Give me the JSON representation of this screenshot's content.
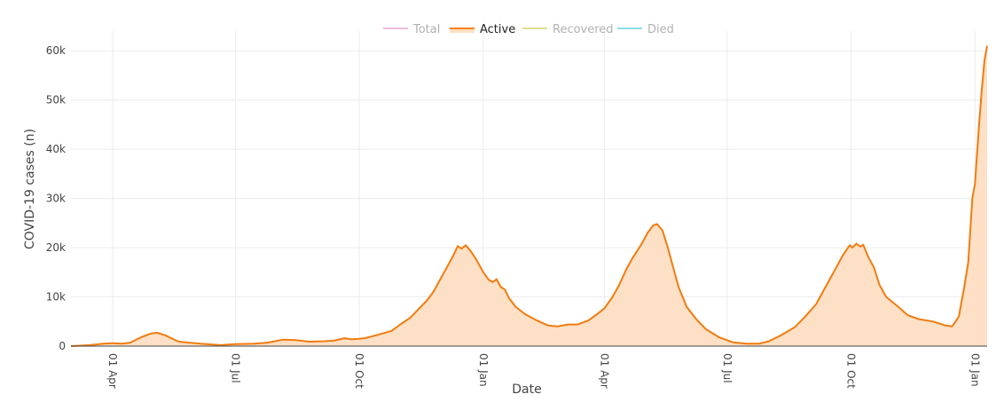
{
  "chart_data": {
    "type": "area",
    "xlabel": "Date",
    "ylabel": "COVID-19 cases (n)",
    "ylim": [
      0,
      64000
    ],
    "xlim": [
      "2020-03-01",
      "2022-01-10"
    ],
    "grid": true,
    "legend_position": "top-center",
    "y_ticks": [
      {
        "value": 0,
        "label": "0"
      },
      {
        "value": 10000,
        "label": "10k"
      },
      {
        "value": 20000,
        "label": "20k"
      },
      {
        "value": 30000,
        "label": "30k"
      },
      {
        "value": 40000,
        "label": "40k"
      },
      {
        "value": 50000,
        "label": "50k"
      },
      {
        "value": 60000,
        "label": "60k"
      }
    ],
    "x_ticks": [
      {
        "date": "2020-04-01",
        "label": "01 Apr"
      },
      {
        "date": "2020-07-01",
        "label": "01 Jul"
      },
      {
        "date": "2020-10-01",
        "label": "01 Oct"
      },
      {
        "date": "2021-01-01",
        "label": "01 Jan"
      },
      {
        "date": "2021-04-01",
        "label": "01 Apr"
      },
      {
        "date": "2021-07-01",
        "label": "01 Jul"
      },
      {
        "date": "2021-10-01",
        "label": "01 Oct"
      },
      {
        "date": "2022-01-01",
        "label": "01 Jan"
      }
    ],
    "legend": [
      {
        "name": "Total",
        "color": "#e377c2",
        "active": false
      },
      {
        "name": "Active",
        "color": "#ff7f0e",
        "active": true
      },
      {
        "name": "Recovered",
        "color": "#bcbd22",
        "active": false
      },
      {
        "name": "Died",
        "color": "#17becf",
        "active": false
      }
    ],
    "series": [
      {
        "name": "Active",
        "color": "#f07c10",
        "fill": "#fde0c5",
        "points": [
          [
            "2020-03-01",
            0
          ],
          [
            "2020-03-15",
            200
          ],
          [
            "2020-03-25",
            500
          ],
          [
            "2020-04-01",
            600
          ],
          [
            "2020-04-08",
            500
          ],
          [
            "2020-04-14",
            700
          ],
          [
            "2020-04-22",
            1800
          ],
          [
            "2020-04-30",
            2600
          ],
          [
            "2020-05-04",
            2700
          ],
          [
            "2020-05-10",
            2200
          ],
          [
            "2020-05-20",
            900
          ],
          [
            "2020-06-05",
            500
          ],
          [
            "2020-06-20",
            200
          ],
          [
            "2020-07-01",
            400
          ],
          [
            "2020-07-15",
            500
          ],
          [
            "2020-07-25",
            700
          ],
          [
            "2020-08-05",
            1300
          ],
          [
            "2020-08-15",
            1200
          ],
          [
            "2020-08-25",
            900
          ],
          [
            "2020-09-05",
            1000
          ],
          [
            "2020-09-12",
            1100
          ],
          [
            "2020-09-20",
            1600
          ],
          [
            "2020-09-25",
            1400
          ],
          [
            "2020-10-01",
            1500
          ],
          [
            "2020-10-05",
            1600
          ],
          [
            "2020-10-15",
            2300
          ],
          [
            "2020-10-25",
            3100
          ],
          [
            "2020-11-01",
            4500
          ],
          [
            "2020-11-08",
            5800
          ],
          [
            "2020-11-15",
            7800
          ],
          [
            "2020-11-20",
            9200
          ],
          [
            "2020-11-25",
            11000
          ],
          [
            "2020-11-30",
            13500
          ],
          [
            "2020-12-05",
            16000
          ],
          [
            "2020-12-10",
            18500
          ],
          [
            "2020-12-13",
            20300
          ],
          [
            "2020-12-16",
            19800
          ],
          [
            "2020-12-19",
            20500
          ],
          [
            "2020-12-23",
            19200
          ],
          [
            "2020-12-27",
            17500
          ],
          [
            "2021-01-01",
            15000
          ],
          [
            "2021-01-05",
            13500
          ],
          [
            "2021-01-08",
            13000
          ],
          [
            "2021-01-11",
            13600
          ],
          [
            "2021-01-14",
            12000
          ],
          [
            "2021-01-17",
            11500
          ],
          [
            "2021-01-20",
            9800
          ],
          [
            "2021-01-25",
            8000
          ],
          [
            "2021-02-01",
            6500
          ],
          [
            "2021-02-10",
            5200
          ],
          [
            "2021-02-18",
            4200
          ],
          [
            "2021-02-25",
            4000
          ],
          [
            "2021-03-05",
            4400
          ],
          [
            "2021-03-12",
            4400
          ],
          [
            "2021-03-20",
            5200
          ],
          [
            "2021-03-27",
            6600
          ],
          [
            "2021-04-01",
            7700
          ],
          [
            "2021-04-07",
            10000
          ],
          [
            "2021-04-12",
            12500
          ],
          [
            "2021-04-17",
            15500
          ],
          [
            "2021-04-22",
            18000
          ],
          [
            "2021-04-28",
            20500
          ],
          [
            "2021-05-03",
            23000
          ],
          [
            "2021-05-07",
            24500
          ],
          [
            "2021-05-10",
            24800
          ],
          [
            "2021-05-14",
            23500
          ],
          [
            "2021-05-18",
            20000
          ],
          [
            "2021-05-22",
            16000
          ],
          [
            "2021-05-26",
            12000
          ],
          [
            "2021-06-01",
            8000
          ],
          [
            "2021-06-08",
            5500
          ],
          [
            "2021-06-15",
            3500
          ],
          [
            "2021-06-25",
            1800
          ],
          [
            "2021-07-05",
            800
          ],
          [
            "2021-07-15",
            500
          ],
          [
            "2021-07-25",
            500
          ],
          [
            "2021-08-01",
            1000
          ],
          [
            "2021-08-10",
            2200
          ],
          [
            "2021-08-20",
            3800
          ],
          [
            "2021-08-28",
            6000
          ],
          [
            "2021-09-05",
            8500
          ],
          [
            "2021-09-10",
            11000
          ],
          [
            "2021-09-15",
            13500
          ],
          [
            "2021-09-20",
            16000
          ],
          [
            "2021-09-25",
            18500
          ],
          [
            "2021-09-30",
            20500
          ],
          [
            "2021-10-02",
            20000
          ],
          [
            "2021-10-05",
            20800
          ],
          [
            "2021-10-08",
            20200
          ],
          [
            "2021-10-10",
            20600
          ],
          [
            "2021-10-14",
            18000
          ],
          [
            "2021-10-18",
            16000
          ],
          [
            "2021-10-22",
            12500
          ],
          [
            "2021-10-27",
            10000
          ],
          [
            "2021-11-05",
            8000
          ],
          [
            "2021-11-12",
            6300
          ],
          [
            "2021-11-20",
            5500
          ],
          [
            "2021-12-01",
            5000
          ],
          [
            "2021-12-10",
            4200
          ],
          [
            "2021-12-15",
            4000
          ],
          [
            "2021-12-20",
            6000
          ],
          [
            "2021-12-24",
            12000
          ],
          [
            "2021-12-27",
            17000
          ],
          [
            "2021-12-30",
            30000
          ],
          [
            "2022-01-01",
            33000
          ],
          [
            "2022-01-04",
            45000
          ],
          [
            "2022-01-06",
            52000
          ],
          [
            "2022-01-08",
            58000
          ],
          [
            "2022-01-10",
            61000
          ]
        ]
      }
    ]
  }
}
